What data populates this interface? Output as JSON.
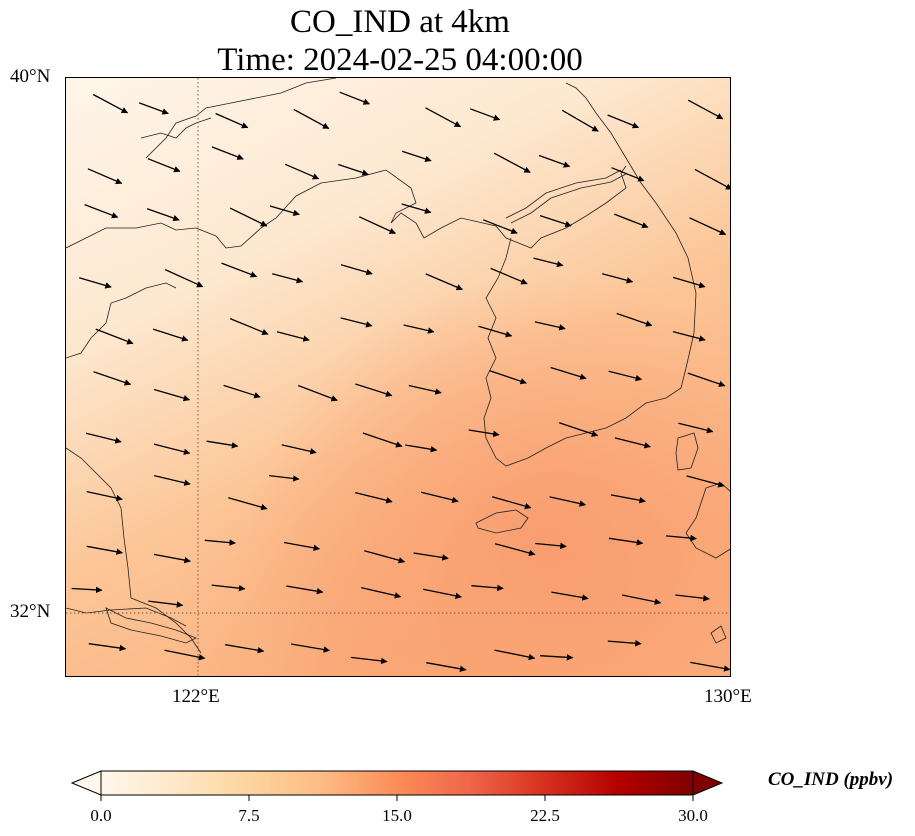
{
  "title": {
    "line1": "CO_IND at 4km",
    "line2": "Time: 2024-02-25 04:00:00"
  },
  "axes": {
    "lat_labels": [
      "40°N",
      "32°N"
    ],
    "lon_labels": [
      "122°E",
      "130°E"
    ],
    "lat_range": [
      31,
      40
    ],
    "lon_range": [
      120,
      130
    ]
  },
  "colorbar": {
    "label": "CO_IND (ppbv)",
    "ticks": [
      "0.0",
      "7.5",
      "15.0",
      "22.5",
      "30.0"
    ],
    "range": [
      0,
      30
    ],
    "colormap": "OrRd",
    "colors": [
      "#fff7ec",
      "#fee8c8",
      "#fdd49e",
      "#fdbb84",
      "#fc8d59",
      "#ef6548",
      "#d7301f",
      "#b30000",
      "#7f0000"
    ]
  },
  "map": {
    "field": "CO_IND",
    "gridlines": "dotted",
    "features": [
      "coastlines",
      "wind vectors"
    ],
    "concentration_note_colors": {
      "low": "#fdf1e2",
      "mid": "#fdd7b0",
      "high": "#fba877"
    }
  }
}
